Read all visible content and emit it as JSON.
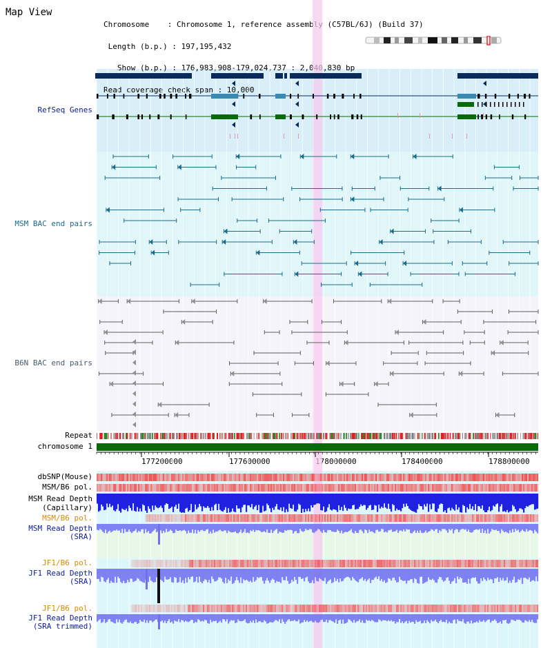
{
  "header": {
    "title": "Map View",
    "info_lines": [
      "Chromosome    : Chromosome 1, reference assembly (C57BL/6J) (Build 37)",
      " Length (b.p.) : 197,195,432",
      "   Show (b.p.) : 176,983,908-179,024,737 : 2,040,830 bp",
      "Read coverage check span : 10,000"
    ]
  },
  "tracks": {
    "refseq": "RefSeq Genes",
    "msm_bac": "MSM BAC end pairs",
    "b6n_bac": "B6N BAC end pairs",
    "repeat": "Repeat",
    "chromosome": "chromosome 1",
    "dbsnp": "dbSNP(Mouse)",
    "msm_b6_pol_1": "MSM/B6 pol.",
    "msm_read_depth_cap_1": "MSM Read Depth",
    "msm_read_depth_cap_2": "(Capillary)",
    "msm_b6_pol_2": "MSM/B6 pol.",
    "msm_read_depth_sra_1": "MSM Read Depth",
    "msm_read_depth_sra_2": "(SRA)",
    "jf1_b6_pol_1": "JF1/B6 pol.",
    "jf1_read_depth_sra_1": "JF1 Read Depth",
    "jf1_read_depth_sra_2": "(SRA)",
    "jf1_b6_pol_2": "JF1/B6 pol.",
    "jf1_read_depth_trim_1": "JF1 Read Depth",
    "jf1_read_depth_trim_2": "(SRA trimmed)"
  },
  "axis": {
    "ticks": [
      "177200000",
      "177600000",
      "178000000",
      "178400000",
      "178800000"
    ]
  },
  "colors": {
    "gene_navy": "#0a2a5a",
    "gene_steel": "#3a8ab0",
    "gene_green": "#0a6a0a",
    "msm_teal": "#1a6a8a",
    "b6n_gray": "#606060",
    "snp_red": "#f04040",
    "depth_blue": "#2020e0",
    "depth_light": "#7070f0",
    "highlight": "#f8c8f0",
    "chrom_green": "#0a6a0a"
  }
}
